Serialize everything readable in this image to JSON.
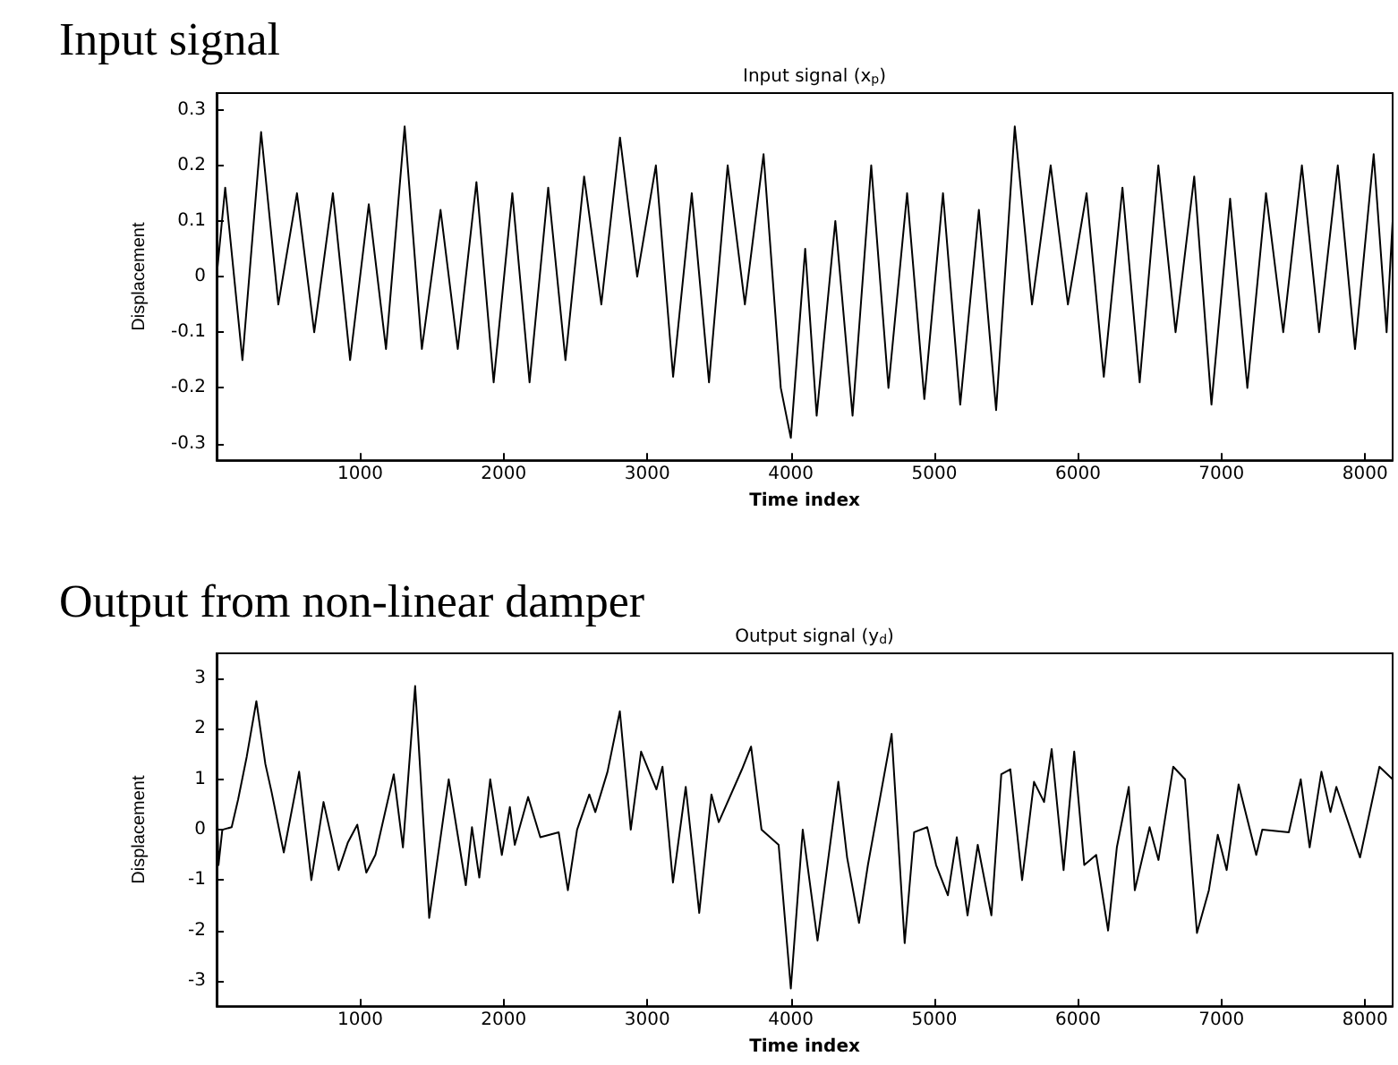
{
  "chart_data": [
    {
      "type": "line",
      "title": "Input signal",
      "subtitle": "Input signal (x$_{p}$)",
      "xlabel": "Time index",
      "ylabel": "Displacement",
      "xlim": [
        0,
        8192
      ],
      "xticks": [
        1000,
        2000,
        3000,
        4000,
        5000,
        6000,
        7000,
        8000
      ],
      "ylim": [
        -0.33,
        0.33
      ],
      "yticks": [
        -0.3,
        -0.2,
        -0.1,
        0,
        0.1,
        0.2,
        0.3
      ],
      "grid": false,
      "marker": "none",
      "line_style": "solid",
      "x": [
        0,
        60,
        180,
        310,
        430,
        560,
        680,
        810,
        930,
        1060,
        1180,
        1310,
        1430,
        1560,
        1680,
        1810,
        1930,
        2060,
        2180,
        2310,
        2430,
        2560,
        2680,
        2810,
        2930,
        3060,
        3180,
        3310,
        3430,
        3560,
        3680,
        3810,
        3930,
        4000,
        4100,
        4180,
        4310,
        4430,
        4560,
        4680,
        4810,
        4930,
        5060,
        5180,
        5310,
        5430,
        5560,
        5680,
        5810,
        5930,
        6060,
        6180,
        6310,
        6430,
        6560,
        6680,
        6810,
        6930,
        7060,
        7180,
        7310,
        7430,
        7560,
        7680,
        7810,
        7930,
        8060,
        8150,
        8192
      ],
      "series": [
        {
          "color": "#000000",
          "values": [
            0,
            0.16,
            -0.15,
            0.26,
            -0.05,
            0.15,
            -0.1,
            0.15,
            -0.15,
            0.13,
            -0.13,
            0.27,
            -0.13,
            0.12,
            -0.13,
            0.17,
            -0.19,
            0.15,
            -0.19,
            0.16,
            -0.15,
            0.18,
            -0.05,
            0.25,
            0,
            0.2,
            -0.18,
            0.15,
            -0.19,
            0.2,
            -0.05,
            0.22,
            -0.2,
            -0.29,
            0.05,
            -0.25,
            0.1,
            -0.25,
            0.2,
            -0.2,
            0.15,
            -0.22,
            0.15,
            -0.23,
            0.12,
            -0.24,
            0.27,
            -0.05,
            0.2,
            -0.05,
            0.15,
            -0.18,
            0.16,
            -0.19,
            0.2,
            -0.1,
            0.18,
            -0.23,
            0.14,
            -0.2,
            0.15,
            -0.1,
            0.2,
            -0.1,
            0.2,
            -0.13,
            0.22,
            -0.1,
            0.1
          ]
        }
      ]
    },
    {
      "type": "line",
      "title": "Output from non-linear damper",
      "subtitle": "Output signal (y$_{d}$)",
      "xlabel": "Time index",
      "ylabel": "Displacement",
      "xlim": [
        0,
        8192
      ],
      "xticks": [
        1000,
        2000,
        3000,
        4000,
        5000,
        6000,
        7000,
        8000
      ],
      "ylim": [
        -3.5,
        3.5
      ],
      "yticks": [
        -3,
        -2,
        -1,
        0,
        1,
        2,
        3
      ],
      "grid": false,
      "marker": "none",
      "line_style": "solid",
      "x": [
        0,
        13,
        40,
        105,
        150,
        210,
        277,
        340,
        383,
        468,
        575,
        660,
        745,
        850,
        915,
        980,
        1043,
        1106,
        1234,
        1298,
        1383,
        1481,
        1617,
        1736,
        1779,
        1830,
        1906,
        1987,
        2043,
        2077,
        2170,
        2255,
        2383,
        2447,
        2511,
        2596,
        2638,
        2723,
        2809,
        2885,
        2957,
        3064,
        3106,
        3179,
        3268,
        3362,
        3447,
        3498,
        3660,
        3723,
        3796,
        3915,
        4000,
        4083,
        4186,
        4331,
        4392,
        4475,
        4537,
        4702,
        4793,
        4859,
        4950,
        5012,
        5094,
        5156,
        5231,
        5302,
        5397,
        5466,
        5529,
        5611,
        5694,
        5764,
        5817,
        5900,
        5974,
        6044,
        6127,
        6210,
        6271,
        6354,
        6396,
        6499,
        6561,
        6664,
        6746,
        6829,
        6912,
        6974,
        7036,
        7119,
        7242,
        7284,
        7469,
        7552,
        7614,
        7696,
        7759,
        7800,
        7965,
        8100,
        8192
      ],
      "series": [
        {
          "color": "#000000",
          "values": [
            0.9,
            -0.7,
            0,
            0.05,
            0.6,
            1.45,
            2.55,
            1.3,
            0.75,
            -0.45,
            1.15,
            -1.0,
            0.55,
            -0.8,
            -0.25,
            0.1,
            -0.85,
            -0.5,
            1.1,
            -0.35,
            2.85,
            -1.75,
            1.0,
            -1.1,
            0.05,
            -0.95,
            1.0,
            -0.5,
            0.45,
            -0.3,
            0.65,
            -0.15,
            -0.05,
            -1.2,
            0,
            0.7,
            0.35,
            1.15,
            2.35,
            0,
            1.55,
            0.8,
            1.25,
            -1.05,
            0.85,
            -1.65,
            0.7,
            0.15,
            1.2,
            1.65,
            0,
            -0.3,
            -3.15,
            0,
            -2.2,
            0.95,
            -0.55,
            -1.85,
            -0.7,
            1.9,
            -2.25,
            -0.05,
            0.05,
            -0.7,
            -1.3,
            -0.15,
            -1.7,
            -0.3,
            -1.7,
            1.1,
            1.2,
            -1.0,
            0.95,
            0.55,
            1.6,
            -0.8,
            1.55,
            -0.7,
            -0.5,
            -2.0,
            -0.35,
            0.85,
            -1.2,
            0.05,
            -0.6,
            1.25,
            1.0,
            -2.05,
            -1.2,
            -0.1,
            -0.8,
            0.9,
            -0.5,
            0,
            -0.05,
            1.0,
            -0.35,
            1.15,
            0.35,
            0.85,
            -0.55,
            1.25,
            1.0
          ]
        }
      ]
    }
  ]
}
